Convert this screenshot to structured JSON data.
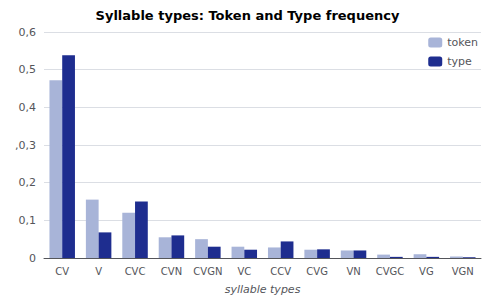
{
  "chart_data": {
    "type": "bar",
    "title": "Syllable types: Token and Type frequency",
    "xlabel": "syllable types",
    "categories": [
      "CV",
      "V",
      "CVC",
      "CVN",
      "CVGN",
      "VC",
      "CCV",
      "CVG",
      "VN",
      "CVGC",
      "VG",
      "VGN"
    ],
    "series": [
      {
        "name": "token",
        "color": "#a8b4d8",
        "values": [
          0.472,
          0.155,
          0.12,
          0.055,
          0.05,
          0.03,
          0.028,
          0.022,
          0.02,
          0.009,
          0.01,
          0.004
        ]
      },
      {
        "name": "type",
        "color": "#1e2d8f",
        "values": [
          0.538,
          0.068,
          0.15,
          0.06,
          0.03,
          0.022,
          0.044,
          0.023,
          0.02,
          0.003,
          0.003,
          0.002
        ]
      }
    ],
    "ylim": [
      0,
      0.6
    ],
    "yticks": [
      0,
      {
        "value": 0.1,
        "label": "0,1"
      },
      {
        "value": 0.2,
        "label": "0,2"
      },
      {
        "value": 0.3,
        "label": ",0,3"
      },
      {
        "value": 0.4,
        "label": "0,4"
      },
      {
        "value": 0.5,
        "label": "0,5"
      },
      {
        "value": 0.6,
        "label": "0,6"
      }
    ],
    "grid": true,
    "legend": "upper right"
  }
}
